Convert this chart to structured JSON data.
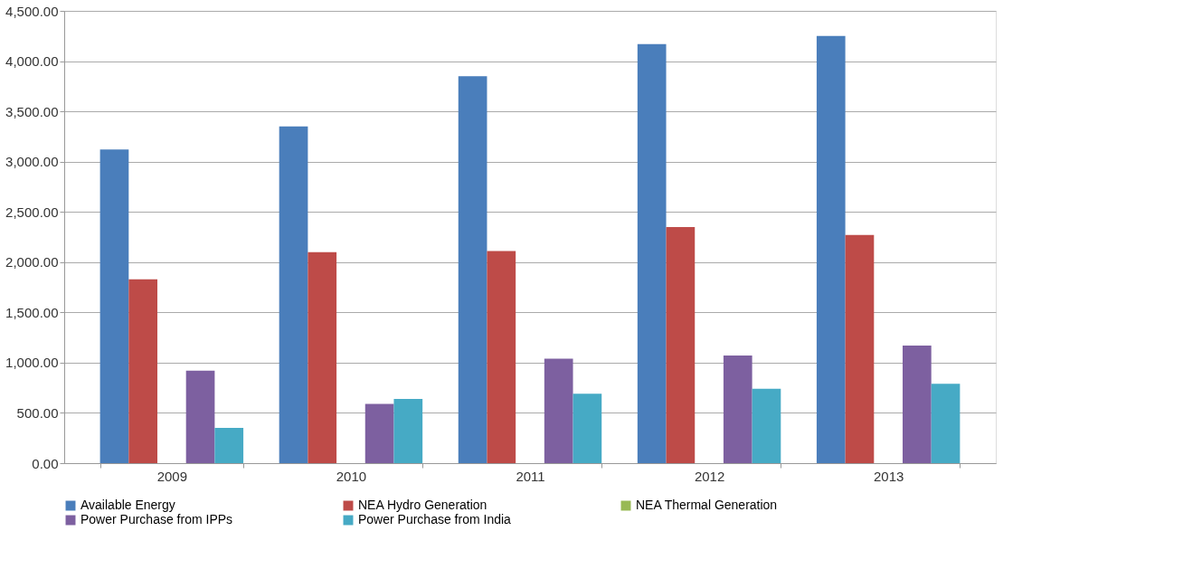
{
  "chart_data": {
    "type": "bar",
    "categories": [
      "2009",
      "2010",
      "2011",
      "2012",
      "2013"
    ],
    "series": [
      {
        "name": "Available Energy",
        "color": "#4a7ebb",
        "values": [
          3120,
          3350,
          3850,
          4170,
          4250
        ]
      },
      {
        "name": "NEA Hydro Generation",
        "color": "#be4b48",
        "values": [
          1830,
          2100,
          2110,
          2350,
          2270
        ]
      },
      {
        "name": "NEA Thermal Generation",
        "color": "#98b954",
        "values": [
          0,
          0,
          0,
          0,
          0
        ]
      },
      {
        "name": "Power Purchase from IPPs",
        "color": "#7d60a0",
        "values": [
          920,
          590,
          1040,
          1070,
          1170
        ]
      },
      {
        "name": "Power Purchase from India",
        "color": "#46aac5",
        "values": [
          350,
          640,
          690,
          740,
          790
        ]
      }
    ],
    "ylim": [
      0,
      4500
    ],
    "yticks": [
      {
        "value": 0,
        "label": "0.00"
      },
      {
        "value": 500,
        "label": "500.00"
      },
      {
        "value": 1000,
        "label": "1,000.00"
      },
      {
        "value": 1500,
        "label": "1,500.00"
      },
      {
        "value": 2000,
        "label": "2,000.00"
      },
      {
        "value": 2500,
        "label": "2,500.00"
      },
      {
        "value": 3000,
        "label": "3,000.00"
      },
      {
        "value": 3500,
        "label": "3,500.00"
      },
      {
        "value": 4000,
        "label": "4,000.00"
      },
      {
        "value": 4500,
        "label": "4,500.00"
      }
    ],
    "grid": "y",
    "legend": "bottom"
  }
}
